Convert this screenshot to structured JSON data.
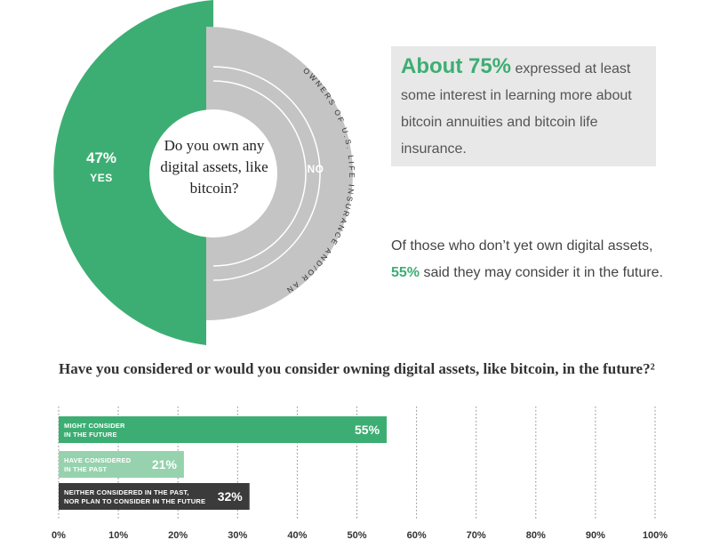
{
  "donut": {
    "question": "Do you own any digital assets, like bitcoin?",
    "yes_label": "YES",
    "yes_value": "47%",
    "no_label": "NO",
    "arc_label": "OWNERS OF U.S. LIFE INSURANCE AND/OR ANNUITIES",
    "yes_color": "#3dae73",
    "no_color": "#c4c4c4"
  },
  "callout": {
    "highlight": "About 75%",
    "text": " expressed at least some interest in learning more about bitcoin annuities and bitcoin life insurance."
  },
  "stat2": {
    "before": "Of those who don’t yet own digital assets, ",
    "highlight": "55%",
    "after": " said they may consider it in the future."
  },
  "bar_question": "Have you considered or would you consider owning digital assets, like bitcoin, in the future?²",
  "chart_data": [
    {
      "type": "pie",
      "title": "Do you own any digital assets, like bitcoin?",
      "categories": [
        "YES",
        "NO"
      ],
      "values": [
        47,
        53
      ]
    },
    {
      "type": "bar",
      "orientation": "horizontal",
      "categories": [
        "MIGHT CONSIDER IN THE FUTURE",
        "HAVE CONSIDERED IN THE PAST",
        "NEITHER CONSIDERED IN THE PAST, NOR PLAN TO CONSIDER IN THE FUTURE"
      ],
      "label_lines": [
        [
          "MIGHT CONSIDER",
          "IN THE FUTURE"
        ],
        [
          "HAVE CONSIDERED",
          "IN THE PAST"
        ],
        [
          "NEITHER CONSIDERED IN THE PAST,",
          "NOR PLAN TO CONSIDER IN THE FUTURE"
        ]
      ],
      "values": [
        55,
        21,
        32
      ],
      "value_labels": [
        "55%",
        "21%",
        "32%"
      ],
      "colors": [
        "#3dae73",
        "#96d2ad",
        "#3b3b3b"
      ],
      "xlim": [
        0,
        100
      ],
      "xticks": [
        "0%",
        "10%",
        "20%",
        "30%",
        "40%",
        "50%",
        "60%",
        "70%",
        "80%",
        "90%",
        "100%"
      ],
      "grid": true
    }
  ]
}
